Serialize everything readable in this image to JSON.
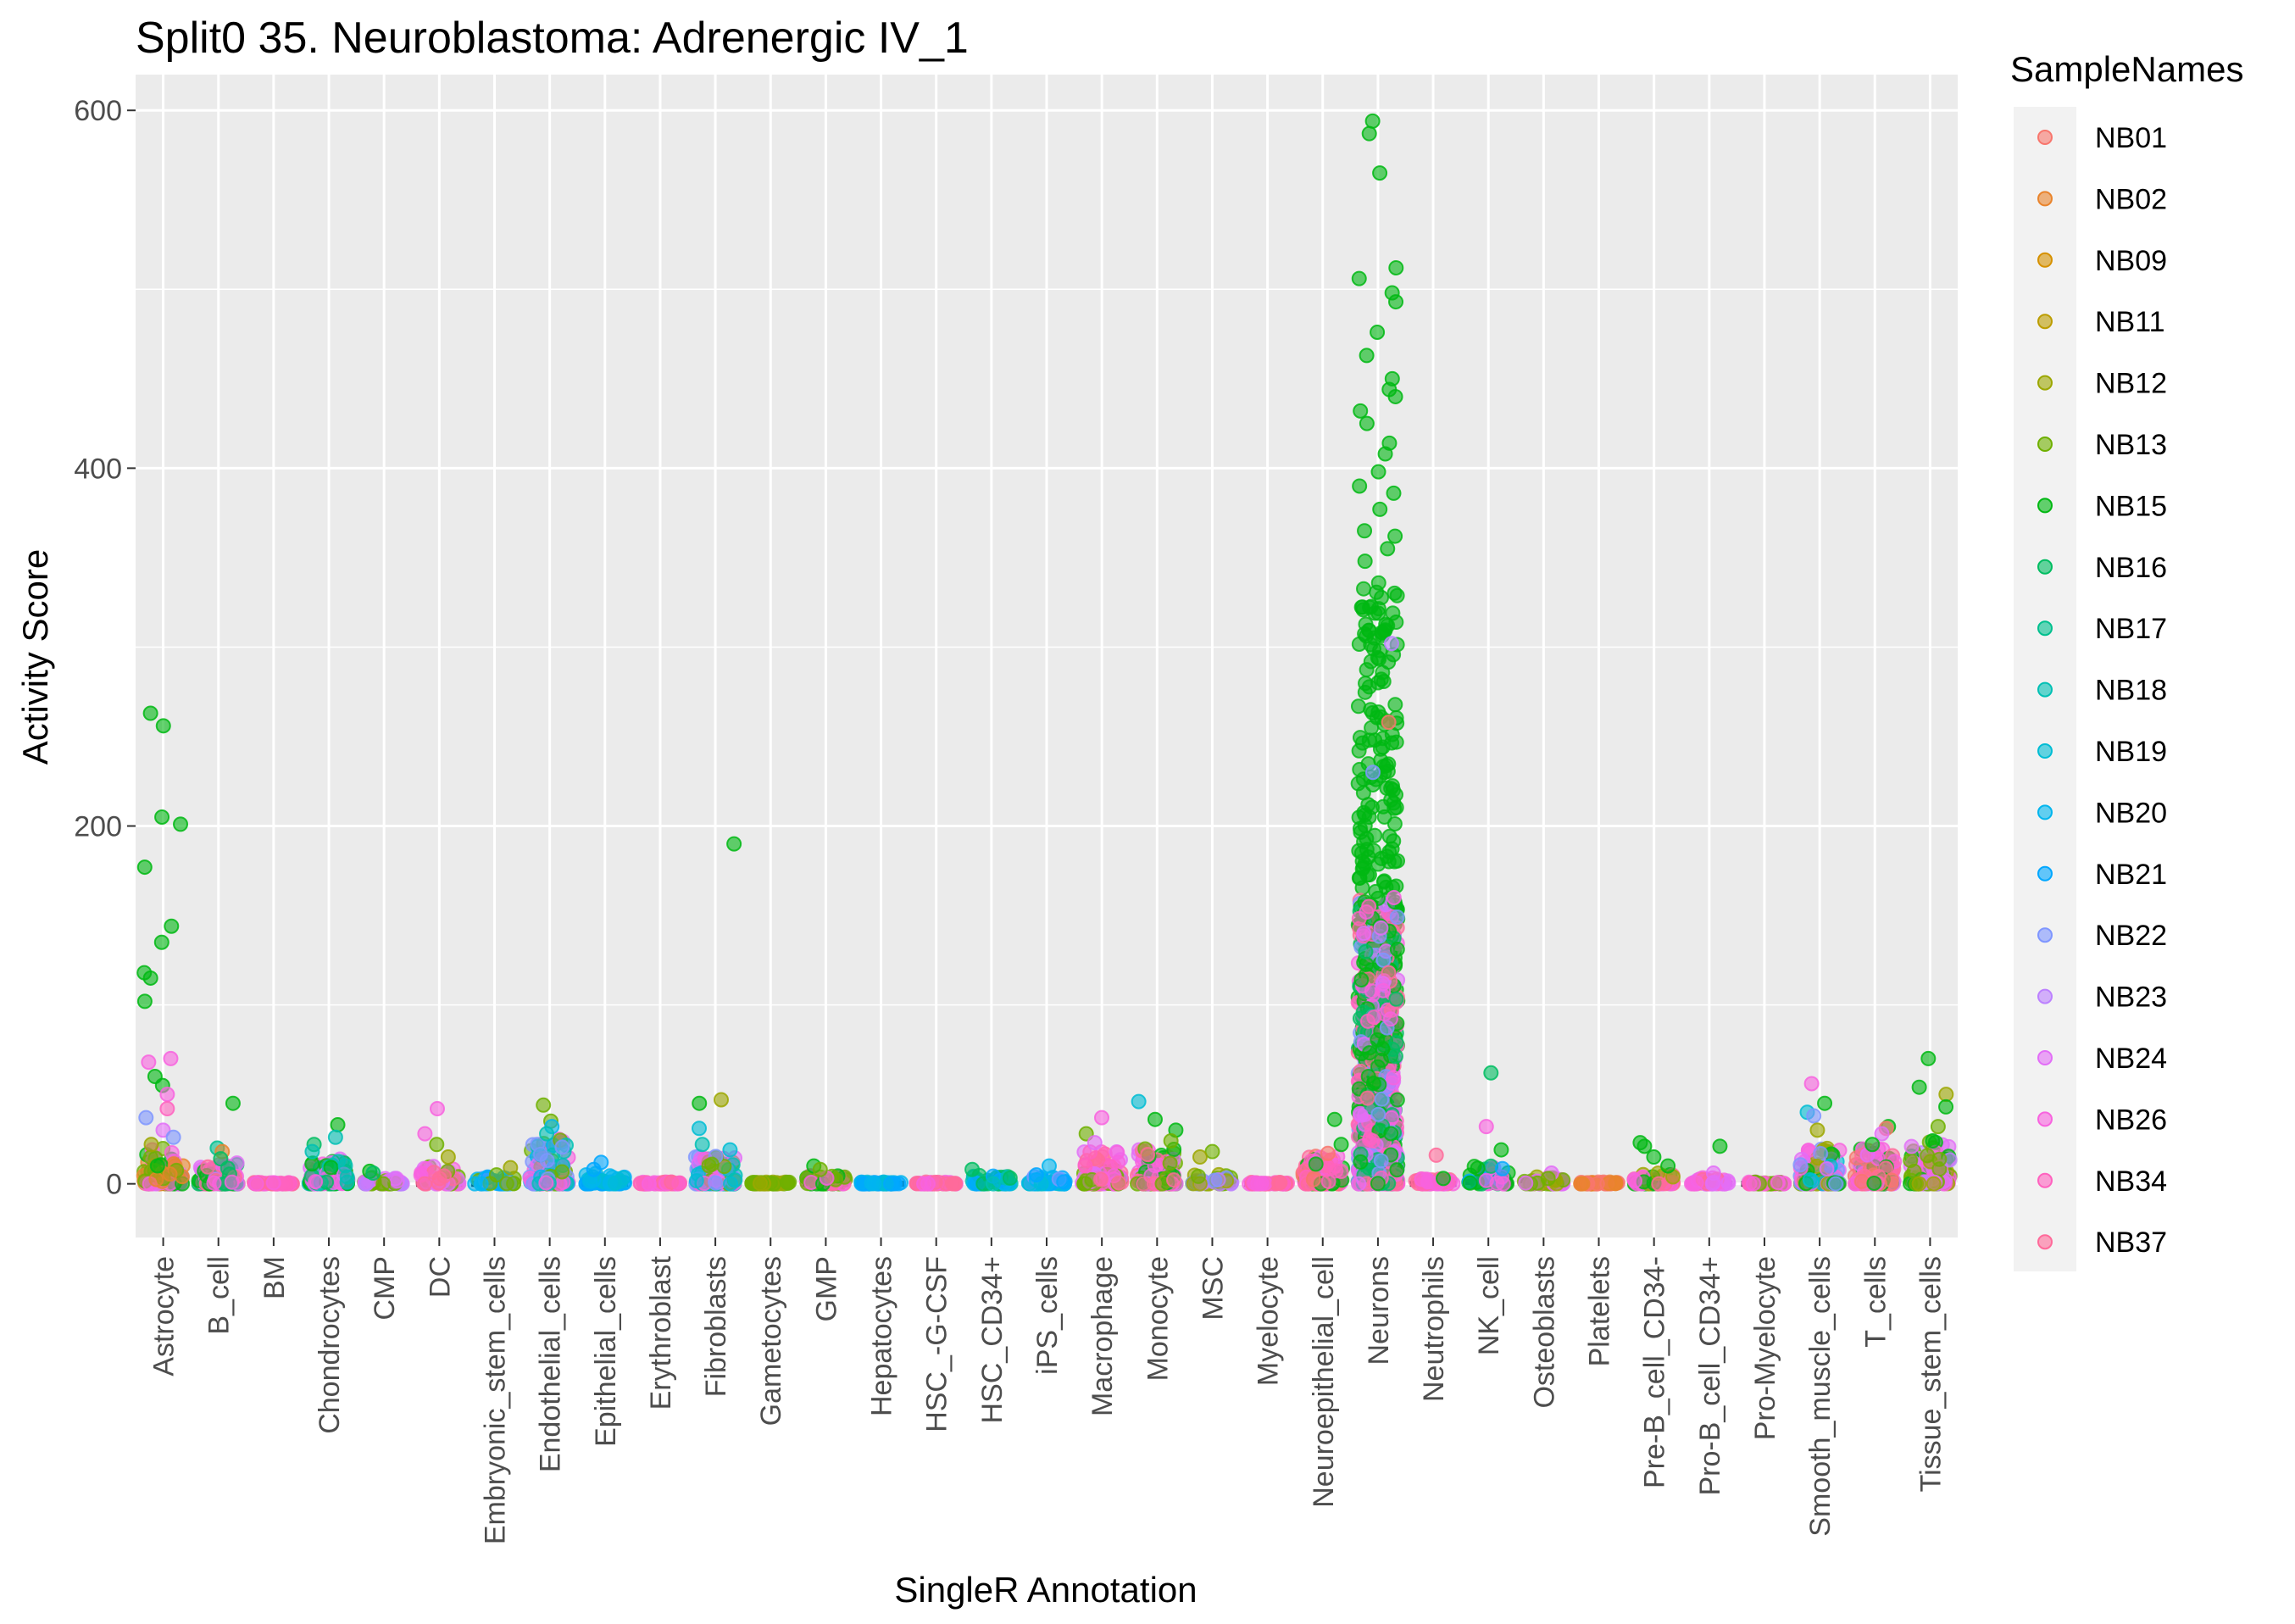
{
  "chart_data": {
    "type": "scatter",
    "title": "Split0 35. Neuroblastoma: Adrenergic IV_1",
    "xlabel": "SingleR Annotation",
    "ylabel": "Activity Score",
    "ylim": [
      -30,
      620
    ],
    "yticks": [
      0,
      200,
      400,
      600
    ],
    "grid": true,
    "legend": {
      "title": "SampleNames",
      "placement": "right"
    },
    "categories": [
      "Astrocyte",
      "B_cell",
      "BM",
      "Chondrocytes",
      "CMP",
      "DC",
      "Embryonic_stem_cells",
      "Endothelial_cells",
      "Epithelial_cells",
      "Erythroblast",
      "Fibroblasts",
      "Gametocytes",
      "GMP",
      "Hepatocytes",
      "HSC_-G-CSF",
      "HSC_CD34+",
      "iPS_cells",
      "Macrophage",
      "Monocyte",
      "MSC",
      "Myelocyte",
      "Neuroepithelial_cell",
      "Neurons",
      "Neutrophils",
      "NK_cell",
      "Osteoblasts",
      "Platelets",
      "Pre-B_cell_CD34-",
      "Pro-B_cell_CD34+",
      "Pro-Myelocyte",
      "Smooth_muscle_cells",
      "T_cells",
      "Tissue_stem_cells"
    ],
    "medians": [
      1,
      0,
      0,
      0,
      0,
      0,
      0,
      2,
      0,
      0,
      0,
      0,
      0,
      0,
      0,
      1,
      0,
      0,
      1,
      0,
      0,
      1,
      3,
      0,
      1,
      2,
      0,
      0,
      0,
      0,
      1,
      1,
      1
    ],
    "series": [
      {
        "name": "NB01",
        "color": "#F8766D"
      },
      {
        "name": "NB02",
        "color": "#E9842C"
      },
      {
        "name": "NB09",
        "color": "#D69100"
      },
      {
        "name": "NB11",
        "color": "#BC9D00"
      },
      {
        "name": "NB12",
        "color": "#9CA700"
      },
      {
        "name": "NB13",
        "color": "#6FB000"
      },
      {
        "name": "NB15",
        "color": "#00B813"
      },
      {
        "name": "NB16",
        "color": "#00BD61"
      },
      {
        "name": "NB17",
        "color": "#00C08E"
      },
      {
        "name": "NB18",
        "color": "#00C0B4"
      },
      {
        "name": "NB19",
        "color": "#00BDD4"
      },
      {
        "name": "NB20",
        "color": "#00B5EE"
      },
      {
        "name": "NB21",
        "color": "#00A7FF"
      },
      {
        "name": "NB22",
        "color": "#7F96FF"
      },
      {
        "name": "NB23",
        "color": "#BC81FF"
      },
      {
        "name": "NB24",
        "color": "#E26EF7"
      },
      {
        "name": "NB26",
        "color": "#F863DF"
      },
      {
        "name": "NB34",
        "color": "#FF62BF"
      },
      {
        "name": "NB37",
        "color": "#FF6A9A"
      }
    ],
    "outlier_points": [
      {
        "cat": "Astrocyte",
        "series": "NB15",
        "y": 263
      },
      {
        "cat": "Astrocyte",
        "series": "NB15",
        "y": 256
      },
      {
        "cat": "Astrocyte",
        "series": "NB15",
        "y": 205
      },
      {
        "cat": "Astrocyte",
        "series": "NB15",
        "y": 201
      },
      {
        "cat": "Astrocyte",
        "series": "NB15",
        "y": 177
      },
      {
        "cat": "Astrocyte",
        "series": "NB15",
        "y": 144
      },
      {
        "cat": "Astrocyte",
        "series": "NB15",
        "y": 135
      },
      {
        "cat": "Astrocyte",
        "series": "NB15",
        "y": 118
      },
      {
        "cat": "Astrocyte",
        "series": "NB15",
        "y": 115
      },
      {
        "cat": "Astrocyte",
        "series": "NB15",
        "y": 102
      },
      {
        "cat": "Astrocyte",
        "series": "NB26",
        "y": 70
      },
      {
        "cat": "Astrocyte",
        "series": "NB26",
        "y": 68
      },
      {
        "cat": "Astrocyte",
        "series": "NB15",
        "y": 60
      },
      {
        "cat": "Astrocyte",
        "series": "NB15",
        "y": 55
      },
      {
        "cat": "Astrocyte",
        "series": "NB26",
        "y": 50
      },
      {
        "cat": "Astrocyte",
        "series": "NB34",
        "y": 42
      },
      {
        "cat": "Astrocyte",
        "series": "NB22",
        "y": 37
      },
      {
        "cat": "Astrocyte",
        "series": "NB24",
        "y": 30
      },
      {
        "cat": "Astrocyte",
        "series": "NB22",
        "y": 26
      },
      {
        "cat": "Astrocyte",
        "series": "NB12",
        "y": 22
      },
      {
        "cat": "B_cell",
        "series": "NB15",
        "y": 45
      },
      {
        "cat": "B_cell",
        "series": "NB17",
        "y": 20
      },
      {
        "cat": "B_cell",
        "series": "NB02",
        "y": 18
      },
      {
        "cat": "B_cell",
        "series": "NB16",
        "y": 14
      },
      {
        "cat": "Chondrocytes",
        "series": "NB15",
        "y": 33
      },
      {
        "cat": "Chondrocytes",
        "series": "NB18",
        "y": 26
      },
      {
        "cat": "Chondrocytes",
        "series": "NB16",
        "y": 22
      },
      {
        "cat": "Chondrocytes",
        "series": "NB18",
        "y": 18
      },
      {
        "cat": "CMP",
        "series": "NB15",
        "y": 7
      },
      {
        "cat": "CMP",
        "series": "NB16",
        "y": 6
      },
      {
        "cat": "DC",
        "series": "NB26",
        "y": 42
      },
      {
        "cat": "DC",
        "series": "NB26",
        "y": 28
      },
      {
        "cat": "DC",
        "series": "NB13",
        "y": 22
      },
      {
        "cat": "DC",
        "series": "NB12",
        "y": 15
      },
      {
        "cat": "Embryonic_stem_cells",
        "series": "NB12",
        "y": 9
      },
      {
        "cat": "Embryonic_stem_cells",
        "series": "NB13",
        "y": 5
      },
      {
        "cat": "Endothelial_cells",
        "series": "NB13",
        "y": 44
      },
      {
        "cat": "Endothelial_cells",
        "series": "NB13",
        "y": 35
      },
      {
        "cat": "Endothelial_cells",
        "series": "NB20",
        "y": 32
      },
      {
        "cat": "Endothelial_cells",
        "series": "NB18",
        "y": 28
      },
      {
        "cat": "Epithelial_cells",
        "series": "NB21",
        "y": 12
      },
      {
        "cat": "Epithelial_cells",
        "series": "NB21",
        "y": 8
      },
      {
        "cat": "Fibroblasts",
        "series": "NB15",
        "y": 190
      },
      {
        "cat": "Fibroblasts",
        "series": "NB12",
        "y": 47
      },
      {
        "cat": "Fibroblasts",
        "series": "NB15",
        "y": 45
      },
      {
        "cat": "Fibroblasts",
        "series": "NB19",
        "y": 31
      },
      {
        "cat": "Fibroblasts",
        "series": "NB18",
        "y": 22
      },
      {
        "cat": "Fibroblasts",
        "series": "NB19",
        "y": 19
      },
      {
        "cat": "GMP",
        "series": "NB15",
        "y": 10
      },
      {
        "cat": "GMP",
        "series": "NB13",
        "y": 8
      },
      {
        "cat": "HSC_CD34+",
        "series": "NB16",
        "y": 8
      },
      {
        "cat": "iPS_cells",
        "series": "NB20",
        "y": 10
      },
      {
        "cat": "iPS_cells",
        "series": "NB21",
        "y": 5
      },
      {
        "cat": "Macrophage",
        "series": "NB26",
        "y": 37
      },
      {
        "cat": "Macrophage",
        "series": "NB13",
        "y": 28
      },
      {
        "cat": "Macrophage",
        "series": "NB24",
        "y": 23
      },
      {
        "cat": "Monocyte",
        "series": "NB19",
        "y": 46
      },
      {
        "cat": "Monocyte",
        "series": "NB15",
        "y": 36
      },
      {
        "cat": "Monocyte",
        "series": "NB15",
        "y": 30
      },
      {
        "cat": "Monocyte",
        "series": "NB13",
        "y": 24
      },
      {
        "cat": "MSC",
        "series": "NB13",
        "y": 18
      },
      {
        "cat": "MSC",
        "series": "NB12",
        "y": 15
      },
      {
        "cat": "Neuroepithelial_cell",
        "series": "NB15",
        "y": 36
      },
      {
        "cat": "Neuroepithelial_cell",
        "series": "NB15",
        "y": 22
      },
      {
        "cat": "Neuroepithelial_cell",
        "series": "NB01",
        "y": 17
      },
      {
        "cat": "Neurons",
        "series": "NB15",
        "y": 594
      },
      {
        "cat": "Neurons",
        "series": "NB15",
        "y": 587
      },
      {
        "cat": "Neurons",
        "series": "NB15",
        "y": 565
      },
      {
        "cat": "Neurons",
        "series": "NB15",
        "y": 512
      },
      {
        "cat": "Neurons",
        "series": "NB15",
        "y": 506
      },
      {
        "cat": "Neurons",
        "series": "NB15",
        "y": 498
      },
      {
        "cat": "Neurons",
        "series": "NB15",
        "y": 493
      },
      {
        "cat": "Neurons",
        "series": "NB15",
        "y": 476
      },
      {
        "cat": "Neurons",
        "series": "NB15",
        "y": 463
      },
      {
        "cat": "Neurons",
        "series": "NB15",
        "y": 450
      },
      {
        "cat": "Neurons",
        "series": "NB15",
        "y": 444
      },
      {
        "cat": "Neurons",
        "series": "NB15",
        "y": 440
      },
      {
        "cat": "Neurons",
        "series": "NB15",
        "y": 432
      },
      {
        "cat": "Neurons",
        "series": "NB15",
        "y": 425
      },
      {
        "cat": "Neurons",
        "series": "NB15",
        "y": 414
      },
      {
        "cat": "Neurons",
        "series": "NB15",
        "y": 408
      },
      {
        "cat": "Neurons",
        "series": "NB15",
        "y": 398
      },
      {
        "cat": "Neurons",
        "series": "NB15",
        "y": 390
      },
      {
        "cat": "Neurons",
        "series": "NB15",
        "y": 386
      },
      {
        "cat": "Neurons",
        "series": "NB15",
        "y": 377
      },
      {
        "cat": "Neurons",
        "series": "NB15",
        "y": 365
      },
      {
        "cat": "Neurons",
        "series": "NB15",
        "y": 362
      },
      {
        "cat": "Neurons",
        "series": "NB15",
        "y": 355
      },
      {
        "cat": "Neurons",
        "series": "NB15",
        "y": 348
      },
      {
        "cat": "Neurons",
        "series": "NB23",
        "y": 302
      },
      {
        "cat": "Neurons",
        "series": "NB01",
        "y": 258
      },
      {
        "cat": "Neurons",
        "series": "NB22",
        "y": 230
      },
      {
        "cat": "Neurons",
        "series": "NB26",
        "y": 160
      },
      {
        "cat": "Neurons",
        "series": "NB34",
        "y": 155
      },
      {
        "cat": "Neurons",
        "series": "NB24",
        "y": 140
      },
      {
        "cat": "Neurons",
        "series": "NB22",
        "y": 125
      },
      {
        "cat": "Neurons",
        "series": "NB37",
        "y": 118
      },
      {
        "cat": "Neurons",
        "series": "NB24",
        "y": 112
      },
      {
        "cat": "Neurons",
        "series": "NB26",
        "y": 108
      },
      {
        "cat": "Neutrophils",
        "series": "NB37",
        "y": 16
      },
      {
        "cat": "Neutrophils",
        "series": "NB15",
        "y": 3
      },
      {
        "cat": "NK_cell",
        "series": "NB16",
        "y": 62
      },
      {
        "cat": "NK_cell",
        "series": "NB26",
        "y": 32
      },
      {
        "cat": "NK_cell",
        "series": "NB15",
        "y": 19
      },
      {
        "cat": "Osteoblasts",
        "series": "NB24",
        "y": 6
      },
      {
        "cat": "Osteoblasts",
        "series": "NB13",
        "y": 3
      },
      {
        "cat": "Pre-B_cell_CD34-",
        "series": "NB15",
        "y": 23
      },
      {
        "cat": "Pre-B_cell_CD34-",
        "series": "NB15",
        "y": 21
      },
      {
        "cat": "Pre-B_cell_CD34-",
        "series": "NB15",
        "y": 15
      },
      {
        "cat": "Pre-B_cell_CD34-",
        "series": "NB15",
        "y": 10
      },
      {
        "cat": "Pro-B_cell_CD34+",
        "series": "NB15",
        "y": 21
      },
      {
        "cat": "Pro-B_cell_CD34+",
        "series": "NB24",
        "y": 6
      },
      {
        "cat": "Smooth_muscle_cells",
        "series": "NB26",
        "y": 56
      },
      {
        "cat": "Smooth_muscle_cells",
        "series": "NB15",
        "y": 45
      },
      {
        "cat": "Smooth_muscle_cells",
        "series": "NB19",
        "y": 40
      },
      {
        "cat": "Smooth_muscle_cells",
        "series": "NB22",
        "y": 38
      },
      {
        "cat": "Smooth_muscle_cells",
        "series": "NB12",
        "y": 30
      },
      {
        "cat": "T_cells",
        "series": "NB15",
        "y": 32
      },
      {
        "cat": "T_cells",
        "series": "NB01",
        "y": 31
      },
      {
        "cat": "T_cells",
        "series": "NB24",
        "y": 28
      },
      {
        "cat": "T_cells",
        "series": "NB15",
        "y": 22
      },
      {
        "cat": "Tissue_stem_cells",
        "series": "NB15",
        "y": 70
      },
      {
        "cat": "Tissue_stem_cells",
        "series": "NB15",
        "y": 54
      },
      {
        "cat": "Tissue_stem_cells",
        "series": "NB12",
        "y": 50
      },
      {
        "cat": "Tissue_stem_cells",
        "series": "NB15",
        "y": 43
      },
      {
        "cat": "Tissue_stem_cells",
        "series": "NB13",
        "y": 32
      },
      {
        "cat": "Tissue_stem_cells",
        "series": "NB15",
        "y": 24
      }
    ],
    "clusters": [
      {
        "cat": "Astrocyte",
        "max": 20,
        "series": [
          "NB15",
          "NB26",
          "NB24",
          "NB13",
          "NB02"
        ]
      },
      {
        "cat": "B_cell",
        "max": 12,
        "series": [
          "NB37",
          "NB26",
          "NB24",
          "NB15",
          "NB16"
        ]
      },
      {
        "cat": "BM",
        "max": 1,
        "series": [
          "NB37",
          "NB34",
          "NB26"
        ]
      },
      {
        "cat": "Chondrocytes",
        "max": 14,
        "series": [
          "NB26",
          "NB24",
          "NB18",
          "NB16",
          "NB15"
        ]
      },
      {
        "cat": "CMP",
        "max": 4,
        "series": [
          "NB24",
          "NB23",
          "NB13"
        ]
      },
      {
        "cat": "DC",
        "max": 10,
        "series": [
          "NB26",
          "NB24",
          "NB37",
          "NB13"
        ]
      },
      {
        "cat": "Embryonic_stem_cells",
        "max": 4,
        "series": [
          "NB22",
          "NB20",
          "NB21",
          "NB13"
        ]
      },
      {
        "cat": "Endothelial_cells",
        "max": 26,
        "series": [
          "NB26",
          "NB24",
          "NB20",
          "NB18",
          "NB13",
          "NB22"
        ]
      },
      {
        "cat": "Epithelial_cells",
        "max": 6,
        "series": [
          "NB21",
          "NB20",
          "NB19"
        ]
      },
      {
        "cat": "Erythroblast",
        "max": 1,
        "series": [
          "NB26",
          "NB34",
          "NB37"
        ]
      },
      {
        "cat": "Fibroblasts",
        "max": 16,
        "series": [
          "NB24",
          "NB26",
          "NB18",
          "NB19",
          "NB22",
          "NB13"
        ]
      },
      {
        "cat": "Gametocytes",
        "max": 1,
        "series": [
          "NB12",
          "NB13"
        ]
      },
      {
        "cat": "GMP",
        "max": 5,
        "series": [
          "NB37",
          "NB26",
          "NB15",
          "NB13"
        ]
      },
      {
        "cat": "Hepatocytes",
        "max": 1,
        "series": [
          "NB20",
          "NB21",
          "NB19"
        ]
      },
      {
        "cat": "HSC_-G-CSF",
        "max": 1,
        "series": [
          "NB26",
          "NB37"
        ]
      },
      {
        "cat": "HSC_CD34+",
        "max": 5,
        "series": [
          "NB18",
          "NB21",
          "NB16",
          "NB20"
        ]
      },
      {
        "cat": "iPS_cells",
        "max": 4,
        "series": [
          "NB21",
          "NB20",
          "NB19",
          "NB22"
        ]
      },
      {
        "cat": "Macrophage",
        "max": 18,
        "series": [
          "NB37",
          "NB26",
          "NB24",
          "NB13",
          "NB34"
        ]
      },
      {
        "cat": "Monocyte",
        "max": 20,
        "series": [
          "NB37",
          "NB26",
          "NB24",
          "NB15",
          "NB13"
        ]
      },
      {
        "cat": "MSC",
        "max": 6,
        "series": [
          "NB22",
          "NB23",
          "NB13",
          "NB12"
        ]
      },
      {
        "cat": "Myelocyte",
        "max": 1,
        "series": [
          "NB26",
          "NB34",
          "NB37"
        ]
      },
      {
        "cat": "Neuroepithelial_cell",
        "max": 16,
        "series": [
          "NB37",
          "NB26",
          "NB34",
          "NB15",
          "NB01"
        ]
      },
      {
        "cat": "Neurons",
        "max": 340,
        "series": [
          "NB15",
          "NB15",
          "NB15",
          "NB16",
          "NB26",
          "NB37",
          "NB24",
          "NB22",
          "NB34"
        ]
      },
      {
        "cat": "Neutrophils",
        "max": 3,
        "series": [
          "NB37",
          "NB26",
          "NB34"
        ]
      },
      {
        "cat": "NK_cell",
        "max": 10,
        "series": [
          "NB26",
          "NB24",
          "NB16",
          "NB15",
          "NB21"
        ]
      },
      {
        "cat": "Osteoblasts",
        "max": 4,
        "series": [
          "NB13",
          "NB24",
          "NB12"
        ]
      },
      {
        "cat": "Platelets",
        "max": 1,
        "series": [
          "NB02",
          "NB01"
        ]
      },
      {
        "cat": "Pre-B_cell_CD34-",
        "max": 6,
        "series": [
          "NB37",
          "NB26",
          "NB15",
          "NB12"
        ]
      },
      {
        "cat": "Pro-B_cell_CD34+",
        "max": 4,
        "series": [
          "NB37",
          "NB26",
          "NB24"
        ]
      },
      {
        "cat": "Pro-Myelocyte",
        "max": 1,
        "series": [
          "NB26",
          "NB13",
          "NB34"
        ]
      },
      {
        "cat": "Smooth_muscle_cells",
        "max": 20,
        "series": [
          "NB26",
          "NB24",
          "NB22",
          "NB15",
          "NB19",
          "NB12"
        ]
      },
      {
        "cat": "T_cells",
        "max": 20,
        "series": [
          "NB37",
          "NB26",
          "NB24",
          "NB15",
          "NB01"
        ]
      },
      {
        "cat": "Tissue_stem_cells",
        "max": 24,
        "series": [
          "NB26",
          "NB24",
          "NB23",
          "NB15",
          "NB13",
          "NB12"
        ]
      }
    ]
  }
}
